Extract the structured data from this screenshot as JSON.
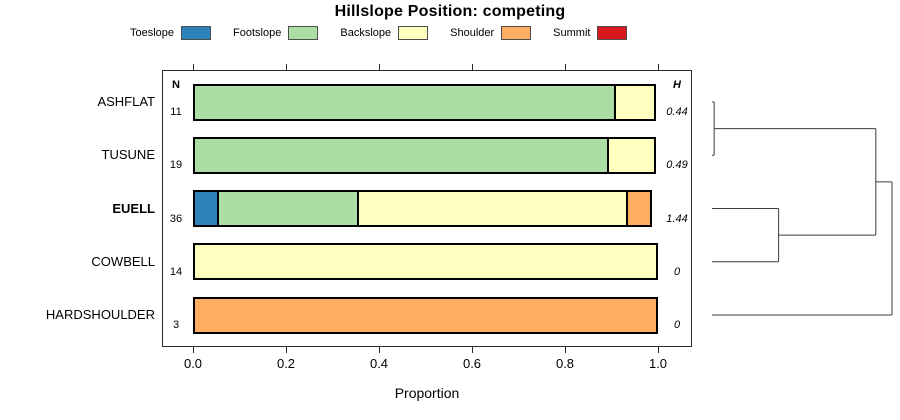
{
  "chart_data": {
    "type": "bar",
    "variant": "horizontal-stacked-proportions-with-dendrogram",
    "title": "Hillslope Position: competing",
    "xlabel": "Proportion",
    "xlim": [
      0,
      1
    ],
    "x_ticks": [
      "0.0",
      "0.2",
      "0.4",
      "0.6",
      "0.8",
      "1.0"
    ],
    "col_header_left": "N",
    "col_header_right": "H",
    "legend_items": [
      {
        "label": "Toeslope",
        "color": "#2b83ba"
      },
      {
        "label": "Footslope",
        "color": "#abdda4"
      },
      {
        "label": "Backslope",
        "color": "#ffffbf"
      },
      {
        "label": "Shoulder",
        "color": "#fdae61"
      },
      {
        "label": "Summit",
        "color": "#d7191c"
      }
    ],
    "rows": [
      {
        "name": "ASHFLAT",
        "n": "11",
        "h": "0.44",
        "bold": false,
        "segments": [
          {
            "cat": "Footslope",
            "p": 0.909
          },
          {
            "cat": "Backslope",
            "p": 0.091
          }
        ]
      },
      {
        "name": "TUSUNE",
        "n": "19",
        "h": "0.49",
        "bold": false,
        "segments": [
          {
            "cat": "Footslope",
            "p": 0.895
          },
          {
            "cat": "Backslope",
            "p": 0.105
          }
        ]
      },
      {
        "name": "EUELL",
        "n": "36",
        "h": "1.44",
        "bold": true,
        "segments": [
          {
            "cat": "Toeslope",
            "p": 0.056
          },
          {
            "cat": "Footslope",
            "p": 0.305
          },
          {
            "cat": "Backslope",
            "p": 0.583
          },
          {
            "cat": "Shoulder",
            "p": 0.056
          }
        ]
      },
      {
        "name": "COWBELL",
        "n": "14",
        "h": "0",
        "bold": false,
        "segments": [
          {
            "cat": "Backslope",
            "p": 1.0
          }
        ]
      },
      {
        "name": "HARDSHOULDER",
        "n": "3",
        "h": "0",
        "bold": false,
        "segments": [
          {
            "cat": "Shoulder",
            "p": 1.0
          }
        ]
      }
    ],
    "dendrogram": {
      "leaf_order": [
        "ASHFLAT",
        "TUSUNE",
        "EUELL",
        "COWBELL",
        "HARDSHOULDER"
      ],
      "tree": {
        "d": 1.0,
        "children": [
          {
            "d": 0.91,
            "children": [
              {
                "d": 0.012,
                "children": [
                  {
                    "leaf": "ASHFLAT"
                  },
                  {
                    "leaf": "TUSUNE"
                  }
                ]
              },
              {
                "d": 0.37,
                "children": [
                  {
                    "leaf": "EUELL"
                  },
                  {
                    "leaf": "COWBELL"
                  }
                ]
              }
            ]
          },
          {
            "leaf": "HARDSHOULDER"
          }
        ]
      }
    }
  }
}
